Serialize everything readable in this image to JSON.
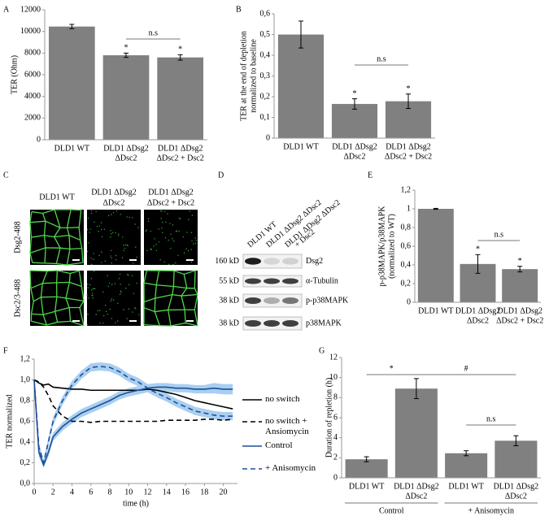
{
  "panel_labels": [
    "A",
    "B",
    "C",
    "D",
    "E",
    "F",
    "G"
  ],
  "images": {
    "columns": [
      [
        "DLD1 WT"
      ],
      [
        "DLD1 ΔDsg2",
        "ΔDsc2"
      ],
      [
        "DLD1 ΔDsg2",
        "ΔDsc2 + Dsc2"
      ]
    ],
    "rows": [
      "Dsg2-488",
      "Dsc2/3-488"
    ]
  },
  "blot": {
    "lanes": [
      [
        "DLD1 WT"
      ],
      [
        "DLD1 ΔDsg2 ΔDsc2"
      ],
      [
        "DLD1 ΔDsg2 ΔDsc2",
        "+ Dsc2"
      ]
    ],
    "rows": [
      {
        "size": "160 kD",
        "protein": "Dsg2"
      },
      {
        "size": "55 kD",
        "protein": "α-Tubulin"
      },
      {
        "size": "38 kD",
        "protein": "p-p38MAPK"
      },
      {
        "size": "38 kD",
        "protein": "p38MAPK"
      }
    ]
  },
  "chart_data": [
    {
      "type": "bar",
      "ylabel": "TER (Ohm)",
      "categories": [
        [
          "DLD1 WT"
        ],
        [
          "DLD1 ΔDsg2",
          "ΔDsc2"
        ],
        [
          "DLD1 ΔDsg2",
          "ΔDsc2 + Dsc2"
        ]
      ],
      "values": [
        10450,
        7800,
        7600
      ],
      "errors": [
        200,
        200,
        250
      ],
      "color": "#808080",
      "ylim": [
        0,
        12000
      ],
      "yticks": [
        0,
        2000,
        4000,
        6000,
        8000,
        10000,
        12000
      ],
      "annotations": [
        "*",
        "*",
        "n.s"
      ]
    },
    {
      "type": "bar",
      "ylabel": [
        "TER at the end of depletion",
        "normalized to baseline"
      ],
      "categories": [
        [
          "DLD1 WT"
        ],
        [
          "DLD1 ΔDsg2",
          "ΔDsc2"
        ],
        [
          "DLD1 ΔDsg2",
          "ΔDsc2 + Dsc2"
        ]
      ],
      "values": [
        0.5,
        0.165,
        0.178
      ],
      "errors": [
        0.065,
        0.025,
        0.035
      ],
      "color": "#808080",
      "ylim": [
        0,
        0.6
      ],
      "yticks": [
        0,
        {
          "value": 0.1,
          "label": "0,1"
        },
        {
          "value": 0.2,
          "label": "0,2"
        },
        {
          "value": 0.3,
          "label": "0,3"
        },
        {
          "value": 0.4,
          "label": "0,4"
        },
        {
          "value": 0.5,
          "label": "0,5"
        },
        {
          "value": 0.6,
          "label": "0,6"
        }
      ],
      "annotations": [
        "*",
        "*",
        "n.s"
      ]
    },
    {
      "type": "bar",
      "ylabel": [
        "p-p38MAPK/p38MAPK",
        "(normalized to WT)"
      ],
      "categories": [
        [
          "DLD1 WT"
        ],
        [
          "DLD1 ΔDsg2",
          "ΔDsc2"
        ],
        [
          "DLD1 ΔDsg2",
          "ΔDsc2 + Dsc2"
        ]
      ],
      "values": [
        1.0,
        0.41,
        0.355
      ],
      "errors": [
        0.005,
        0.1,
        0.03
      ],
      "color": "#808080",
      "ylim": [
        0,
        1.2
      ],
      "yticks": [
        0,
        {
          "value": 0.2,
          "label": "0,2"
        },
        {
          "value": 0.4,
          "label": "0,4"
        },
        {
          "value": 0.6,
          "label": "0,6"
        },
        {
          "value": 0.8,
          "label": "0,8"
        },
        1,
        {
          "value": 1.2,
          "label": "1,2"
        }
      ],
      "annotations": [
        "*",
        "*",
        "n.s"
      ]
    },
    {
      "type": "line",
      "xlabel": "time (h)",
      "ylabel": "TER normalized",
      "x": [
        0,
        0.5,
        1,
        1.5,
        2,
        3,
        4,
        5,
        6,
        7,
        8,
        9,
        10,
        11,
        12,
        13,
        14,
        15,
        16,
        17,
        18,
        19,
        20,
        21
      ],
      "xlim": [
        0,
        21.5
      ],
      "xticks": [
        0,
        2,
        4,
        6,
        8,
        10,
        12,
        14,
        16,
        18,
        20
      ],
      "ylim": [
        0,
        1.2
      ],
      "yticks": [
        {
          "value": 0,
          "label": "0,0"
        },
        {
          "value": 0.2,
          "label": "0,2"
        },
        {
          "value": 0.4,
          "label": "0,4"
        },
        {
          "value": 0.6,
          "label": "0,6"
        },
        {
          "value": 0.8,
          "label": "0,8"
        },
        {
          "value": 1.0,
          "label": "1,0"
        },
        {
          "value": 1.2,
          "label": "1,2"
        }
      ],
      "series": [
        {
          "name": "no switch",
          "color": "#000000",
          "style": "solid",
          "values": [
            1.0,
            0.97,
            0.95,
            0.96,
            0.93,
            0.92,
            0.91,
            0.91,
            0.9,
            0.9,
            0.9,
            0.9,
            0.9,
            0.9,
            0.91,
            0.9,
            0.88,
            0.86,
            0.83,
            0.8,
            0.78,
            0.76,
            0.74,
            0.72
          ]
        },
        {
          "name": "no switch + Ansiomycin",
          "color": "#000000",
          "style": "dashed",
          "values": [
            1.0,
            0.98,
            0.93,
            0.85,
            0.75,
            0.65,
            0.6,
            0.6,
            0.59,
            0.6,
            0.6,
            0.6,
            0.6,
            0.6,
            0.6,
            0.6,
            0.61,
            0.61,
            0.61,
            0.61,
            0.62,
            0.62,
            0.61,
            0.62
          ]
        },
        {
          "name": "Control",
          "color": "#1f4e99",
          "band_color": "#a9cff0",
          "style": "solid",
          "values": [
            1.0,
            0.3,
            0.18,
            0.3,
            0.45,
            0.55,
            0.62,
            0.68,
            0.72,
            0.76,
            0.8,
            0.85,
            0.88,
            0.9,
            0.92,
            0.93,
            0.93,
            0.92,
            0.92,
            0.91,
            0.91,
            0.92,
            0.91,
            0.91
          ],
          "errors": [
            0.02,
            0.04,
            0.03,
            0.04,
            0.04,
            0.04,
            0.04,
            0.04,
            0.04,
            0.04,
            0.04,
            0.04,
            0.04,
            0.04,
            0.04,
            0.04,
            0.04,
            0.04,
            0.04,
            0.04,
            0.04,
            0.05,
            0.05,
            0.05
          ]
        },
        {
          "name": "+ Anisomycin",
          "color": "#1f4e99",
          "band_color": "#a9cff0",
          "style": "dashed",
          "values": [
            1.0,
            0.35,
            0.2,
            0.4,
            0.6,
            0.8,
            0.95,
            1.05,
            1.12,
            1.13,
            1.12,
            1.08,
            1.02,
            0.98,
            0.92,
            0.87,
            0.83,
            0.78,
            0.74,
            0.7,
            0.68,
            0.66,
            0.65,
            0.65
          ],
          "errors": [
            0.02,
            0.04,
            0.03,
            0.04,
            0.04,
            0.04,
            0.04,
            0.04,
            0.04,
            0.04,
            0.04,
            0.04,
            0.04,
            0.04,
            0.04,
            0.04,
            0.04,
            0.04,
            0.04,
            0.04,
            0.04,
            0.04,
            0.04,
            0.04
          ]
        }
      ]
    },
    {
      "type": "bar",
      "ylabel": "Duration of repletion (h)",
      "categories": [
        [
          "DLD1 WT"
        ],
        [
          "DLD1 ΔDsg2",
          "ΔDsc2"
        ],
        [
          "DLD1 WT"
        ],
        [
          "DLD1 ΔDsg2",
          "ΔDsc2"
        ]
      ],
      "values": [
        1.85,
        8.9,
        2.45,
        3.7
      ],
      "errors": [
        0.25,
        1.0,
        0.25,
        0.5
      ],
      "color": "#808080",
      "ylim": [
        0,
        12
      ],
      "yticks": [
        0,
        2,
        4,
        6,
        8,
        10,
        12
      ],
      "groups": [
        "Control",
        "+ Anisomycin"
      ],
      "annotations": [
        "*",
        "#",
        "n.s"
      ]
    }
  ]
}
